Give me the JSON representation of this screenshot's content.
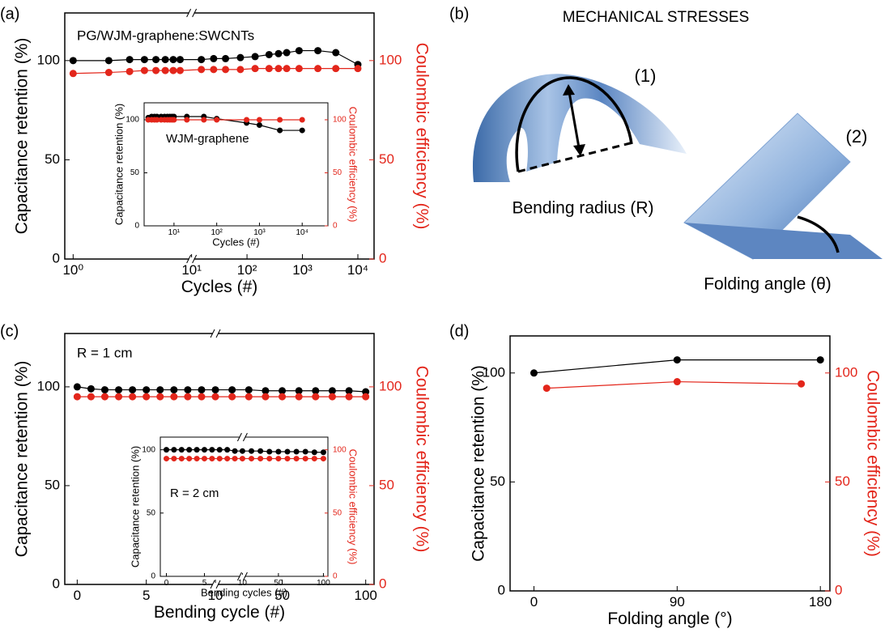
{
  "figure_title": "MECHANICAL STRESSES",
  "diagram": {
    "panel": "(b)",
    "label_1": "(1)",
    "label_2": "(2)",
    "bending": "Bending radius (R)",
    "folding": "Folding angle (θ)"
  },
  "chart_data": [
    {
      "type": "line",
      "panel": "(a)",
      "annotation": "PG/WJM-graphene:SWCNTs",
      "xlabel": "Cycles (#)",
      "ylabel": "Capacitance retention (%)",
      "y2label": "Coulombic efficiency (%)",
      "xscale": "log",
      "xbreak": 10,
      "xlim": [
        0.85,
        19600
      ],
      "xticks": [
        {
          "value": 1,
          "label": "10⁰"
        },
        {
          "value": 10,
          "label": "10¹"
        },
        {
          "value": 100,
          "label": "10²"
        },
        {
          "value": 1000,
          "label": "10³"
        },
        {
          "value": 10000,
          "label": "10⁴"
        }
      ],
      "ylim": [
        0,
        124
      ],
      "yticks": [
        0,
        50,
        100
      ],
      "y2lim": [
        0,
        124
      ],
      "y2ticks": [
        0,
        50,
        100
      ],
      "series": [
        {
          "name": "Capacitance retention",
          "color": "#000000",
          "x": [
            1,
            2,
            3,
            4,
            5,
            6,
            7,
            8,
            15,
            25,
            41,
            76,
            140,
            250,
            370,
            520,
            870,
            1900,
            4000,
            10000
          ],
          "values": [
            100,
            100,
            100.5,
            100.5,
            100.5,
            100.5,
            100.5,
            100.5,
            100.5,
            101,
            101,
            101.5,
            102,
            103,
            103.5,
            104,
            105,
            105,
            104,
            98
          ]
        },
        {
          "name": "Coulombic efficiency",
          "color": "#e3261b",
          "axis": "y2",
          "x": [
            1,
            2,
            3,
            4,
            5,
            6,
            7,
            8,
            15,
            25,
            41,
            76,
            140,
            250,
            370,
            520,
            870,
            1900,
            4000,
            10000
          ],
          "values": [
            93.5,
            94,
            94.5,
            95,
            95,
            95,
            95,
            95,
            95.5,
            95.5,
            95.5,
            95.5,
            96,
            96,
            96,
            96,
            96,
            96,
            96,
            96
          ]
        }
      ]
    },
    {
      "type": "line",
      "inset": true,
      "annotation": "WJM-graphene",
      "xlabel": "Cycles (#)",
      "ylabel": "Capacitance retention (%)",
      "y2label": "Coulombic efficiency (%)",
      "xscale": "log",
      "xlim": [
        2,
        40000
      ],
      "xticks": [
        {
          "value": 10,
          "label": "10¹"
        },
        {
          "value": 100,
          "label": "10²"
        },
        {
          "value": 1000,
          "label": "10³"
        },
        {
          "value": 10000,
          "label": "10⁴"
        }
      ],
      "ylim": [
        0,
        116
      ],
      "yticks": [
        0,
        50,
        100
      ],
      "y2lim": [
        0,
        116
      ],
      "y2ticks": [
        0,
        50,
        100
      ],
      "series": [
        {
          "name": "Capacitance retention",
          "color": "#000000",
          "x": [
            2.5,
            3,
            3.5,
            4,
            5,
            6,
            7,
            8,
            9,
            10,
            20,
            50,
            100,
            500,
            1000,
            3000,
            10000
          ],
          "values": [
            102,
            103,
            103,
            103,
            103,
            103,
            103,
            103,
            103,
            103,
            103,
            103,
            101,
            97,
            95,
            90,
            90
          ]
        },
        {
          "name": "Coulombic efficiency",
          "color": "#e3261b",
          "axis": "y2",
          "x": [
            2.5,
            3,
            3.5,
            4,
            5,
            6,
            7,
            8,
            9,
            10,
            20,
            50,
            100,
            500,
            1000,
            3000,
            10000
          ],
          "values": [
            100,
            100,
            100,
            100,
            100,
            100,
            100,
            100,
            100,
            100,
            100,
            100,
            100,
            100,
            100,
            100,
            100
          ]
        }
      ]
    },
    {
      "type": "line",
      "panel": "(c)",
      "annotation": "R = 1 cm",
      "xlabel": "Bending cycle (#)",
      "ylabel": "Capacitance retention (%)",
      "y2label": "Coulombic efficiency (%)",
      "xbreak": 10,
      "xlim": [
        -0.9,
        105
      ],
      "xticks": [
        0,
        5,
        10,
        50,
        100
      ],
      "ylim": [
        0,
        127
      ],
      "yticks": [
        0,
        50,
        100
      ],
      "y2lim": [
        0,
        127
      ],
      "y2ticks": [
        0,
        50,
        100
      ],
      "series": [
        {
          "name": "Capacitance retention",
          "color": "#000000",
          "x": [
            0,
            1,
            2,
            3,
            4,
            5,
            6,
            7,
            8,
            9,
            10,
            20,
            30,
            40,
            50,
            60,
            70,
            80,
            90,
            100
          ],
          "values": [
            100,
            99,
            98.5,
            98.5,
            98.5,
            98.5,
            98.5,
            98.5,
            98.5,
            98.5,
            98.5,
            98.5,
            98.5,
            98,
            98,
            98,
            98,
            98,
            98,
            97.5
          ]
        },
        {
          "name": "Coulombic efficiency",
          "color": "#e3261b",
          "axis": "y2",
          "x": [
            0,
            1,
            2,
            3,
            4,
            5,
            6,
            7,
            8,
            9,
            10,
            20,
            30,
            40,
            50,
            60,
            70,
            80,
            90,
            100
          ],
          "values": [
            95,
            95,
            95,
            95,
            95,
            95,
            95,
            95,
            95,
            95,
            95,
            95,
            95,
            95,
            95,
            95,
            95,
            95,
            95,
            95
          ]
        }
      ]
    },
    {
      "type": "line",
      "inset": true,
      "annotation": "R = 2 cm",
      "xlabel": "Bending cycles (#)",
      "ylabel": "Capacitance retention (%)",
      "y2label": "Coulombic efficiency (%)",
      "xbreak": 10,
      "xlim": [
        -0.8,
        105
      ],
      "xticks": [
        0,
        5,
        10,
        50,
        100
      ],
      "ylim": [
        0,
        110
      ],
      "yticks": [
        0,
        50,
        100
      ],
      "y2lim": [
        0,
        110
      ],
      "y2ticks": [
        0,
        50,
        100
      ],
      "series": [
        {
          "name": "Capacitance retention",
          "color": "#000000",
          "x": [
            0,
            1,
            2,
            3,
            4,
            5,
            6,
            7,
            8,
            9,
            10,
            20,
            30,
            40,
            50,
            60,
            70,
            80,
            90,
            100
          ],
          "values": [
            100,
            100,
            100,
            100,
            100,
            100,
            100,
            100,
            100,
            99,
            99,
            99,
            99,
            98.5,
            98.5,
            98.5,
            98.5,
            98.5,
            98,
            98
          ]
        },
        {
          "name": "Coulombic efficiency",
          "color": "#e3261b",
          "axis": "y2",
          "x": [
            0,
            1,
            2,
            3,
            4,
            5,
            6,
            7,
            8,
            9,
            10,
            20,
            30,
            40,
            50,
            60,
            70,
            80,
            90,
            100
          ],
          "values": [
            93,
            93,
            93,
            93,
            93,
            93,
            93,
            93,
            93,
            93,
            93,
            93,
            93,
            93,
            93,
            93,
            93,
            93,
            93,
            93
          ]
        }
      ]
    },
    {
      "type": "line",
      "panel": "(d)",
      "xlabel": "Folding angle (°)",
      "ylabel": "Capacitance retention (%)",
      "y2label": "Coulombic efficiency (%)",
      "xlim": [
        -15,
        186
      ],
      "xticks": [
        0,
        90,
        180
      ],
      "ylim": [
        0,
        117
      ],
      "yticks": [
        0,
        50,
        100
      ],
      "y2lim": [
        0,
        117
      ],
      "y2ticks": [
        0,
        50,
        100
      ],
      "series": [
        {
          "name": "Capacitance retention",
          "color": "#000000",
          "x": [
            0,
            90,
            180
          ],
          "values": [
            100,
            106,
            106
          ]
        },
        {
          "name": "Coulombic efficiency",
          "color": "#e3261b",
          "axis": "y2",
          "x": [
            8,
            90,
            168
          ],
          "values": [
            93,
            96,
            95
          ]
        }
      ]
    }
  ]
}
